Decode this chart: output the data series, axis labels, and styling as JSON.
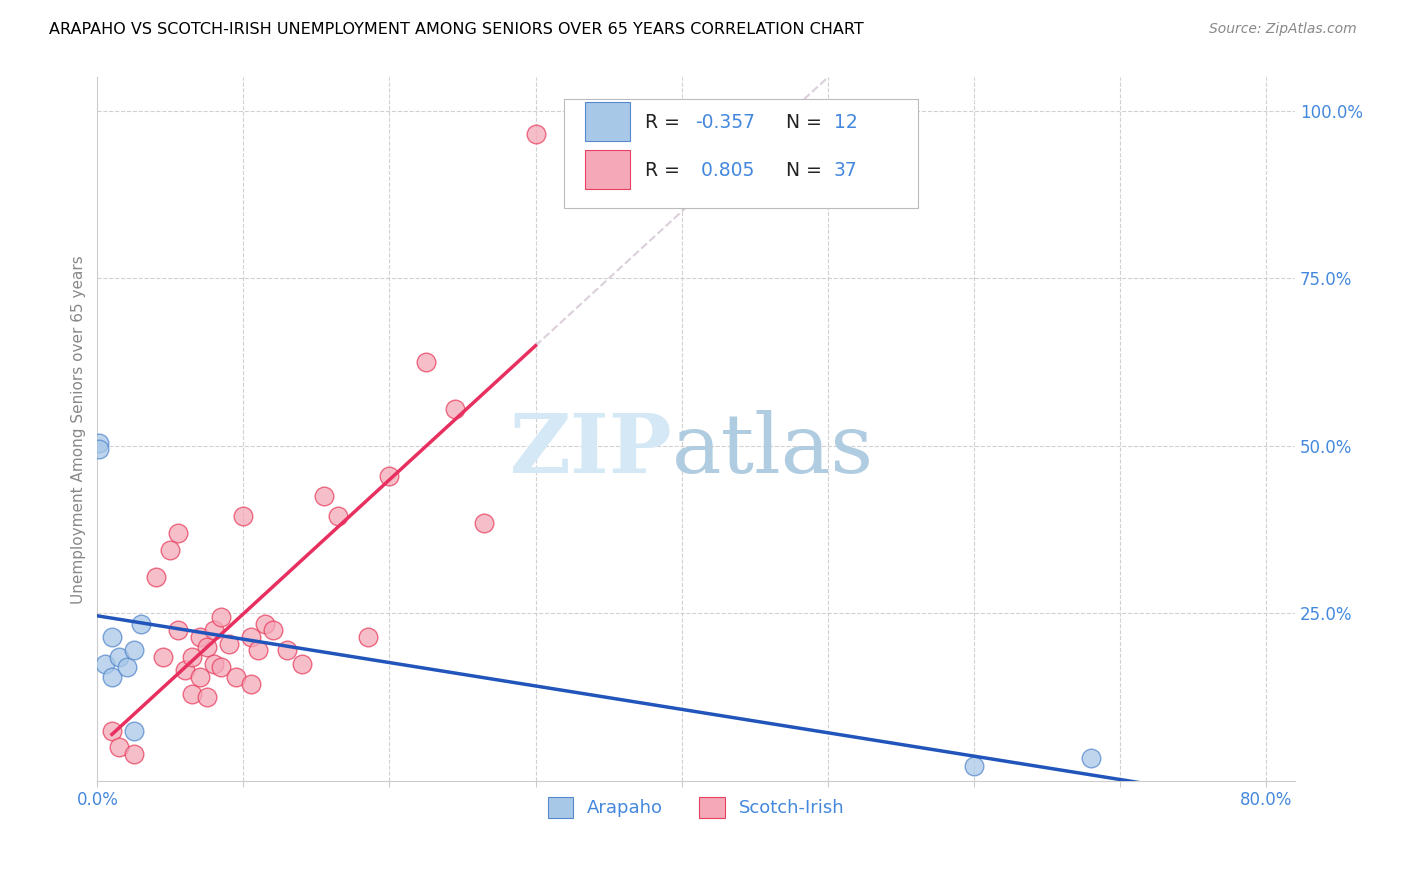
{
  "title": "ARAPAHO VS SCOTCH-IRISH UNEMPLOYMENT AMONG SENIORS OVER 65 YEARS CORRELATION CHART",
  "source": "Source: ZipAtlas.com",
  "ylabel": "Unemployment Among Seniors over 65 years",
  "xlim": [
    0.0,
    0.82
  ],
  "ylim": [
    0.0,
    1.05
  ],
  "x_ticks": [
    0.0,
    0.1,
    0.2,
    0.3,
    0.4,
    0.5,
    0.6,
    0.7,
    0.8
  ],
  "y_ticks_right": [
    0.0,
    0.25,
    0.5,
    0.75,
    1.0
  ],
  "y_tick_labels_right": [
    "",
    "25.0%",
    "50.0%",
    "75.0%",
    "100.0%"
  ],
  "arapaho_color": "#A8C8E8",
  "scotch_irish_color": "#F4A8B8",
  "arapaho_edge_color": "#5588CC",
  "scotch_irish_edge_color": "#E84060",
  "arapaho_line_color": "#2255BB",
  "scotch_irish_line_color": "#E83060",
  "legend_R_arapaho": "-0.357",
  "legend_N_arapaho": "12",
  "legend_R_scotch": "0.805",
  "legend_N_scotch": "37",
  "arapaho_x": [
    0.001,
    0.001,
    0.005,
    0.01,
    0.01,
    0.015,
    0.02,
    0.025,
    0.025,
    0.03,
    0.6,
    0.68
  ],
  "arapaho_y": [
    0.505,
    0.495,
    0.175,
    0.215,
    0.155,
    0.185,
    0.17,
    0.195,
    0.075,
    0.235,
    0.022,
    0.035
  ],
  "scotch_x": [
    0.3,
    0.01,
    0.015,
    0.025,
    0.04,
    0.045,
    0.05,
    0.055,
    0.055,
    0.06,
    0.065,
    0.065,
    0.07,
    0.07,
    0.075,
    0.075,
    0.08,
    0.08,
    0.085,
    0.085,
    0.09,
    0.095,
    0.1,
    0.105,
    0.105,
    0.11,
    0.115,
    0.12,
    0.13,
    0.14,
    0.155,
    0.165,
    0.185,
    0.2,
    0.225,
    0.245,
    0.265
  ],
  "scotch_y": [
    0.965,
    0.075,
    0.05,
    0.04,
    0.305,
    0.185,
    0.345,
    0.37,
    0.225,
    0.165,
    0.185,
    0.13,
    0.155,
    0.215,
    0.2,
    0.125,
    0.175,
    0.225,
    0.245,
    0.17,
    0.205,
    0.155,
    0.395,
    0.215,
    0.145,
    0.195,
    0.235,
    0.225,
    0.195,
    0.175,
    0.425,
    0.395,
    0.215,
    0.455,
    0.625,
    0.555,
    0.385
  ]
}
